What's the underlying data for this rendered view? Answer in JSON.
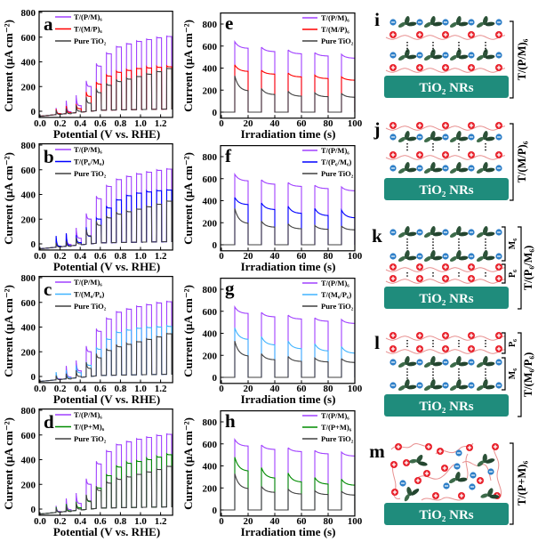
{
  "chart_data": [
    {
      "panel": "a",
      "type": "line",
      "xlabel": "Potential (V vs. RHE)",
      "ylabel": "Current (μA cm⁻²)",
      "xlim": [
        0,
        1.32
      ],
      "ylim": [
        -50,
        810
      ],
      "xticks": [
        0,
        0.2,
        0.4,
        0.6,
        0.8,
        1.0,
        1.2
      ],
      "xtick_labels": [
        "0.0",
        "0.2",
        "0.4",
        "0.6",
        "0.8",
        "1.0",
        "1.2"
      ],
      "yticks": [
        0,
        200,
        400,
        600,
        800
      ],
      "ytick_labels": [
        "0",
        "200",
        "400",
        "600",
        "800"
      ],
      "legend": "top-left",
      "grid": false,
      "pulse_starts": [
        0.16,
        0.26,
        0.36,
        0.46,
        0.56,
        0.66,
        0.76,
        0.86,
        0.96,
        1.06,
        1.16,
        1.26
      ],
      "pulse_duration": 0.05,
      "dark_current": {
        "x": [
          0,
          0.6,
          1.3
        ],
        "y": [
          -40,
          8,
          18
        ]
      },
      "series": [
        {
          "name": "T/(P/M)₆",
          "color": "#a040ff",
          "pulse_peak": [
            30,
            100,
            130,
            250,
            390,
            475,
            525,
            550,
            570,
            585,
            600,
            610
          ],
          "pulse_plateau": [
            -20,
            -5,
            45,
            200,
            365,
            465,
            520,
            545,
            565,
            580,
            595,
            605
          ]
        },
        {
          "name": "T/(M/P)₆",
          "color": "#ff0000",
          "pulse_peak": [
            20,
            50,
            60,
            160,
            240,
            295,
            325,
            340,
            350,
            360,
            365,
            370
          ],
          "pulse_plateau": [
            -20,
            -10,
            20,
            120,
            220,
            285,
            315,
            330,
            345,
            350,
            355,
            360
          ]
        },
        {
          "name": "Pure TiO₂",
          "color": "#404040",
          "pulse_peak": [
            10,
            30,
            50,
            120,
            190,
            230,
            260,
            270,
            285,
            305,
            325,
            350
          ],
          "pulse_plateau": [
            -25,
            -20,
            0,
            65,
            150,
            210,
            240,
            260,
            280,
            300,
            320,
            345
          ]
        }
      ]
    },
    {
      "panel": "b",
      "type": "line",
      "xlabel": "Potential (V vs. RHE)",
      "ylabel": "Current (μA cm⁻²)",
      "xlim": [
        0,
        1.32
      ],
      "ylim": [
        -50,
        810
      ],
      "xticks": [
        0,
        0.2,
        0.4,
        0.6,
        0.8,
        1.0,
        1.2
      ],
      "xtick_labels": [
        "0.0",
        "0.2",
        "0.4",
        "0.6",
        "0.8",
        "1.0",
        "1.2"
      ],
      "yticks": [
        0,
        200,
        400,
        600,
        800
      ],
      "ytick_labels": [
        "0",
        "200",
        "400",
        "600",
        "800"
      ],
      "legend": "top-left",
      "grid": false,
      "pulse_starts": [
        0.16,
        0.26,
        0.36,
        0.46,
        0.56,
        0.66,
        0.76,
        0.86,
        0.96,
        1.06,
        1.16,
        1.26
      ],
      "pulse_duration": 0.05,
      "dark_current": {
        "x": [
          0,
          0.6,
          1.3
        ],
        "y": [
          -40,
          8,
          18
        ]
      },
      "series": [
        {
          "name": "T/(P/M)₆",
          "color": "#a040ff",
          "pulse_peak": [
            30,
            100,
            130,
            250,
            390,
            475,
            525,
            550,
            570,
            585,
            600,
            610
          ],
          "pulse_plateau": [
            -20,
            -5,
            45,
            200,
            365,
            465,
            520,
            545,
            565,
            580,
            595,
            605
          ]
        },
        {
          "name": "T/(P₆/M₆)",
          "color": "#0000ff",
          "pulse_peak": [
            70,
            100,
            70,
            140,
            210,
            310,
            360,
            395,
            415,
            430,
            435,
            440
          ],
          "pulse_plateau": [
            -20,
            -15,
            10,
            60,
            200,
            290,
            355,
            390,
            410,
            420,
            430,
            435
          ]
        },
        {
          "name": "Pure TiO₂",
          "color": "#404040",
          "pulse_peak": [
            10,
            30,
            50,
            120,
            190,
            230,
            260,
            270,
            285,
            305,
            325,
            350
          ],
          "pulse_plateau": [
            -25,
            -20,
            0,
            65,
            150,
            210,
            240,
            260,
            280,
            300,
            320,
            345
          ]
        }
      ]
    },
    {
      "panel": "c",
      "type": "line",
      "xlabel": "Potential (V vs. RHE)",
      "ylabel": "Current (μA cm⁻²)",
      "xlim": [
        0,
        1.32
      ],
      "ylim": [
        -50,
        810
      ],
      "xticks": [
        0,
        0.2,
        0.4,
        0.6,
        0.8,
        1.0,
        1.2
      ],
      "xtick_labels": [
        "0.0",
        "0.2",
        "0.4",
        "0.6",
        "0.8",
        "1.0",
        "1.2"
      ],
      "yticks": [
        0,
        200,
        400,
        600,
        800
      ],
      "ytick_labels": [
        "0",
        "200",
        "400",
        "600",
        "800"
      ],
      "legend": "top-left",
      "grid": false,
      "pulse_starts": [
        0.16,
        0.26,
        0.36,
        0.46,
        0.56,
        0.66,
        0.76,
        0.86,
        0.96,
        1.06,
        1.16,
        1.26
      ],
      "pulse_duration": 0.05,
      "dark_current": {
        "x": [
          0,
          0.6,
          1.3
        ],
        "y": [
          -40,
          8,
          18
        ]
      },
      "series": [
        {
          "name": "T/(P/M)₆",
          "color": "#a040ff",
          "pulse_peak": [
            30,
            100,
            130,
            250,
            390,
            475,
            525,
            550,
            570,
            585,
            600,
            610
          ],
          "pulse_plateau": [
            -20,
            -5,
            45,
            200,
            365,
            465,
            520,
            545,
            565,
            580,
            595,
            605
          ]
        },
        {
          "name": "T/(M₆/P₆)",
          "color": "#40b4ff",
          "pulse_peak": [
            40,
            60,
            90,
            120,
            240,
            310,
            365,
            385,
            395,
            405,
            410,
            415
          ],
          "pulse_plateau": [
            -25,
            -10,
            30,
            90,
            220,
            300,
            355,
            375,
            390,
            395,
            400,
            405
          ]
        },
        {
          "name": "Pure TiO₂",
          "color": "#404040",
          "pulse_peak": [
            10,
            30,
            50,
            120,
            190,
            230,
            260,
            270,
            285,
            305,
            325,
            350
          ],
          "pulse_plateau": [
            -25,
            -20,
            0,
            65,
            150,
            210,
            240,
            260,
            280,
            300,
            320,
            345
          ]
        }
      ]
    },
    {
      "panel": "d",
      "type": "line",
      "xlabel": "Potential (V vs. RHE)",
      "ylabel": "Current (μA cm⁻²)",
      "xlim": [
        0,
        1.32
      ],
      "ylim": [
        -50,
        810
      ],
      "xticks": [
        0,
        0.2,
        0.4,
        0.6,
        0.8,
        1.0,
        1.2
      ],
      "xtick_labels": [
        "0.0",
        "0.2",
        "0.4",
        "0.6",
        "0.8",
        "1.0",
        "1.2"
      ],
      "yticks": [
        0,
        200,
        400,
        600,
        800
      ],
      "ytick_labels": [
        "0",
        "200",
        "400",
        "600",
        "800"
      ],
      "legend": "top-left",
      "grid": false,
      "pulse_starts": [
        0.16,
        0.26,
        0.36,
        0.46,
        0.56,
        0.66,
        0.76,
        0.86,
        0.96,
        1.06,
        1.16,
        1.26
      ],
      "pulse_duration": 0.05,
      "dark_current": {
        "x": [
          0,
          0.6,
          1.3
        ],
        "y": [
          -40,
          8,
          18
        ]
      },
      "series": [
        {
          "name": "T/(P/M)₆",
          "color": "#a040ff",
          "pulse_peak": [
            30,
            100,
            130,
            250,
            390,
            475,
            525,
            550,
            570,
            585,
            600,
            610
          ],
          "pulse_plateau": [
            -20,
            -5,
            45,
            200,
            365,
            465,
            520,
            545,
            565,
            580,
            595,
            605
          ]
        },
        {
          "name": "T/(P+M)₆",
          "color": "#008c00",
          "pulse_peak": [
            20,
            50,
            60,
            120,
            180,
            280,
            355,
            385,
            395,
            415,
            430,
            450
          ],
          "pulse_plateau": [
            -25,
            -15,
            10,
            60,
            170,
            270,
            340,
            370,
            385,
            400,
            420,
            440
          ]
        },
        {
          "name": "Pure TiO₂",
          "color": "#404040",
          "pulse_peak": [
            10,
            30,
            50,
            120,
            190,
            230,
            260,
            270,
            285,
            305,
            325,
            350
          ],
          "pulse_plateau": [
            -25,
            -20,
            0,
            65,
            150,
            210,
            240,
            260,
            280,
            300,
            320,
            345
          ]
        }
      ]
    },
    {
      "panel": "e",
      "type": "line",
      "xlabel": "Irradiation time (s)",
      "ylabel": "Current (μA cm⁻²)",
      "xlim": [
        0,
        100
      ],
      "ylim": [
        -55,
        900
      ],
      "xticks": [
        0,
        20,
        40,
        60,
        80,
        100
      ],
      "xtick_labels": [
        "0",
        "20",
        "40",
        "60",
        "80",
        "100"
      ],
      "yticks": [
        0,
        200,
        400,
        600,
        800
      ],
      "ytick_labels": [
        "0",
        "200",
        "400",
        "600",
        "800"
      ],
      "legend": "top-right",
      "grid": false,
      "light_on": [
        [
          10,
          20
        ],
        [
          30,
          40
        ],
        [
          50,
          60
        ],
        [
          70,
          80
        ],
        [
          90,
          100
        ]
      ],
      "series": [
        {
          "name": "T/(P/M)₆",
          "color": "#a040ff",
          "on_start": [
            640,
            590,
            565,
            540,
            525
          ],
          "on_end": [
            580,
            550,
            530,
            510,
            490
          ]
        },
        {
          "name": "T/(M/P)₆",
          "color": "#ff0000",
          "on_start": [
            430,
            380,
            355,
            335,
            320
          ],
          "on_end": [
            370,
            345,
            320,
            305,
            290
          ]
        },
        {
          "name": "Pure TiO₂",
          "color": "#404040",
          "on_start": [
            330,
            215,
            190,
            175,
            170
          ],
          "on_end": [
            195,
            160,
            145,
            140,
            135
          ]
        }
      ]
    },
    {
      "panel": "f",
      "type": "line",
      "xlabel": "Irradiation time (s)",
      "ylabel": "Current (μA cm⁻²)",
      "xlim": [
        0,
        100
      ],
      "ylim": [
        -55,
        900
      ],
      "xticks": [
        0,
        20,
        40,
        60,
        80,
        100
      ],
      "xtick_labels": [
        "0",
        "20",
        "40",
        "60",
        "80",
        "100"
      ],
      "yticks": [
        0,
        200,
        400,
        600,
        800
      ],
      "ytick_labels": [
        "0",
        "200",
        "400",
        "600",
        "800"
      ],
      "legend": "top-right",
      "grid": false,
      "light_on": [
        [
          10,
          20
        ],
        [
          30,
          40
        ],
        [
          50,
          60
        ],
        [
          70,
          80
        ],
        [
          90,
          100
        ]
      ],
      "series": [
        {
          "name": "T/(P/M)₆",
          "color": "#a040ff",
          "on_start": [
            640,
            590,
            565,
            540,
            525
          ],
          "on_end": [
            580,
            550,
            530,
            510,
            490
          ]
        },
        {
          "name": "T/(P₆/M₆)",
          "color": "#0000ff",
          "on_start": [
            430,
            380,
            350,
            330,
            315
          ],
          "on_end": [
            365,
            320,
            285,
            265,
            245
          ]
        },
        {
          "name": "Pure TiO₂",
          "color": "#404040",
          "on_start": [
            330,
            215,
            190,
            175,
            170
          ],
          "on_end": [
            195,
            160,
            145,
            140,
            135
          ]
        }
      ]
    },
    {
      "panel": "g",
      "type": "line",
      "xlabel": "Irradiation time (s)",
      "ylabel": "Current (μA cm⁻²)",
      "xlim": [
        0,
        100
      ],
      "ylim": [
        -55,
        900
      ],
      "xticks": [
        0,
        20,
        40,
        60,
        80,
        100
      ],
      "xtick_labels": [
        "0",
        "20",
        "40",
        "60",
        "80",
        "100"
      ],
      "yticks": [
        0,
        200,
        400,
        600,
        800
      ],
      "ytick_labels": [
        "0",
        "200",
        "400",
        "600",
        "800"
      ],
      "legend": "top-right",
      "grid": false,
      "light_on": [
        [
          10,
          20
        ],
        [
          30,
          40
        ],
        [
          50,
          60
        ],
        [
          70,
          80
        ],
        [
          90,
          100
        ]
      ],
      "series": [
        {
          "name": "T/(P/M)₆",
          "color": "#a040ff",
          "on_start": [
            640,
            590,
            565,
            540,
            525
          ],
          "on_end": [
            580,
            550,
            530,
            510,
            490
          ]
        },
        {
          "name": "T/(M₆/P₆)",
          "color": "#40b4ff",
          "on_start": [
            450,
            370,
            330,
            305,
            280
          ],
          "on_end": [
            345,
            295,
            260,
            240,
            220
          ]
        },
        {
          "name": "Pure TiO₂",
          "color": "#404040",
          "on_start": [
            330,
            215,
            190,
            175,
            170
          ],
          "on_end": [
            195,
            160,
            145,
            140,
            135
          ]
        }
      ]
    },
    {
      "panel": "h",
      "type": "line",
      "xlabel": "Irradiation time (s)",
      "ylabel": "Current (μA cm⁻²)",
      "xlim": [
        0,
        100
      ],
      "ylim": [
        -55,
        900
      ],
      "xticks": [
        0,
        20,
        40,
        60,
        80,
        100
      ],
      "xtick_labels": [
        "0",
        "20",
        "40",
        "60",
        "80",
        "100"
      ],
      "yticks": [
        0,
        200,
        400,
        600,
        800
      ],
      "ytick_labels": [
        "0",
        "200",
        "400",
        "600",
        "800"
      ],
      "legend": "top-right",
      "grid": false,
      "light_on": [
        [
          10,
          20
        ],
        [
          30,
          40
        ],
        [
          50,
          60
        ],
        [
          70,
          80
        ],
        [
          90,
          100
        ]
      ],
      "series": [
        {
          "name": "T/(P/M)₆",
          "color": "#a040ff",
          "on_start": [
            640,
            590,
            565,
            540,
            525
          ],
          "on_end": [
            580,
            550,
            530,
            510,
            490
          ]
        },
        {
          "name": "T/(P+M)₆",
          "color": "#008c00",
          "on_start": [
            480,
            385,
            335,
            295,
            280
          ],
          "on_end": [
            355,
            290,
            255,
            235,
            225
          ]
        },
        {
          "name": "Pure TiO₂",
          "color": "#404040",
          "on_start": [
            330,
            215,
            190,
            175,
            170
          ],
          "on_end": [
            195,
            160,
            145,
            140,
            135
          ]
        }
      ]
    }
  ],
  "diagrams": {
    "substrate_label": "TiO₂ NRs",
    "colors": {
      "substrate": "#1f8c7c",
      "polycation": "#e8202a",
      "polyanion": "#2e7fc8",
      "chain": "#e89090",
      "mxene": "#2c5238"
    },
    "panels": [
      {
        "panel": "i",
        "label": "T/(P/M)₆"
      },
      {
        "panel": "j",
        "label": "T/(M/P)₆"
      },
      {
        "panel": "k",
        "label": "T/(P₆/M₆)",
        "sub_labels": [
          "M₆",
          "P₆"
        ]
      },
      {
        "panel": "l",
        "label": "T/(M₆/P₆)",
        "sub_labels": [
          "P₆",
          "M₆"
        ]
      },
      {
        "panel": "m",
        "label": "T/(P+M)₆"
      }
    ]
  }
}
